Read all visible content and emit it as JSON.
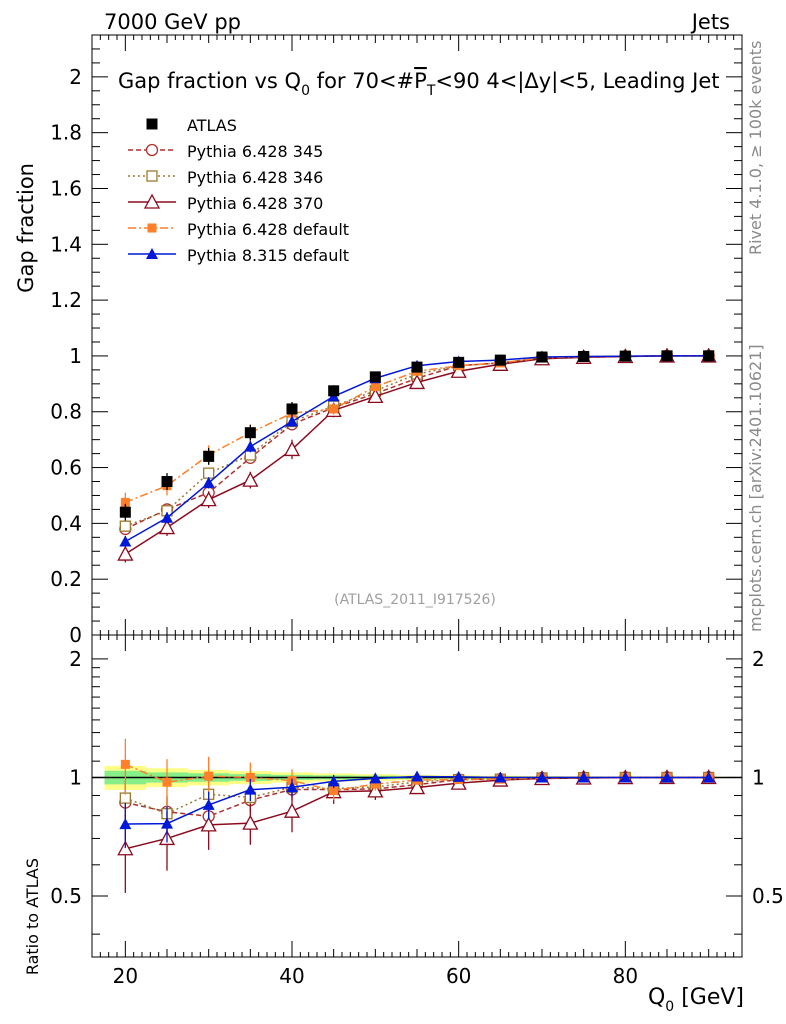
{
  "header": {
    "left": "7000 GeV pp",
    "right": "Jets"
  },
  "side_labels": {
    "rivet": "Rivet 4.1.0, ≥ 100k events",
    "mcplots": "mcplots.cern.ch [arXiv:2401.10621]"
  },
  "chart_data": {
    "type": "scatter",
    "title_parts": {
      "a": "Gap fraction vs Q",
      "a_sub": "0",
      "b": " for 70<#",
      "c": "P",
      "c_sub": "T",
      "d": "<90  4<|Δy|<5, Leading Jet"
    },
    "analysis_tag": "(ATLAS_2011_I917526)",
    "xlabel": "Q",
    "xlabel_sub": "0",
    "xlabel_unit": " [GeV]",
    "xlim": [
      16,
      94
    ],
    "x_ticks": [
      20,
      40,
      60,
      80
    ],
    "x_tick_labels": [
      "20",
      "40",
      "60",
      "80"
    ],
    "top": {
      "ylabel": "Gap fraction",
      "ylim": [
        0,
        2.15
      ],
      "y_ticks": [
        0,
        0.2,
        0.4,
        0.6,
        0.8,
        1.0,
        1.2,
        1.4,
        1.6,
        1.8,
        2.0
      ],
      "y_tick_labels": [
        "0",
        "0.2",
        "0.4",
        "0.6",
        "0.8",
        "1",
        "1.2",
        "1.4",
        "1.6",
        "1.8",
        "2"
      ]
    },
    "ratio": {
      "ylabel": "Ratio to ATLAS",
      "ylim": [
        0.35,
        2.3
      ],
      "log": true,
      "y_ticks": [
        0.5,
        1,
        2
      ],
      "y_tick_labels": [
        "0.5",
        "1",
        "2"
      ],
      "band_inner": {
        "color": "#88ee88",
        "halfwidths": [
          0.04,
          0.03,
          0.025,
          0.02,
          0.015,
          0.012,
          0.01,
          0.008,
          0.006,
          0.005,
          0.004,
          0.003,
          0.003,
          0.003,
          0.003
        ]
      },
      "band_outer": {
        "color": "#ffff88",
        "halfwidths": [
          0.07,
          0.055,
          0.045,
          0.038,
          0.03,
          0.024,
          0.02,
          0.015,
          0.012,
          0.01,
          0.008,
          0.006,
          0.005,
          0.005,
          0.005
        ]
      }
    },
    "x": [
      20,
      25,
      30,
      35,
      40,
      45,
      50,
      55,
      60,
      65,
      70,
      75,
      80,
      85,
      90
    ],
    "data": {
      "name": "ATLAS",
      "color": "#000000",
      "values": [
        0.44,
        0.55,
        0.64,
        0.725,
        0.81,
        0.875,
        0.925,
        0.96,
        0.977,
        0.985,
        0.996,
        0.998,
        0.999,
        1.0,
        1.0
      ],
      "errors": [
        0.03,
        0.03,
        0.03,
        0.028,
        0.025,
        0.02,
        0.015,
        0.01,
        0.008,
        0.006,
        0.004,
        0.003,
        0.002,
        0.002,
        0.002
      ]
    },
    "series": [
      {
        "name": "Pythia 6.428 345",
        "color": "#b03030",
        "dash": "5,3",
        "marker": "circle-open",
        "values": [
          0.38,
          0.45,
          0.51,
          0.635,
          0.755,
          0.815,
          0.865,
          0.92,
          0.965,
          0.975,
          0.993,
          0.997,
          0.999,
          1.0,
          1.0
        ],
        "errors": [
          0.02,
          0.02,
          0.02,
          0.02,
          0.02,
          0.018,
          0.015,
          0.01,
          0.008,
          0.005,
          0.003,
          0.002,
          0.001,
          0.001,
          0.001
        ]
      },
      {
        "name": "Pythia 6.428 346",
        "color": "#9a7a30",
        "dash": "2,3",
        "marker": "square-open",
        "values": [
          0.39,
          0.445,
          0.58,
          0.645,
          0.765,
          0.82,
          0.875,
          0.935,
          0.965,
          0.975,
          0.993,
          0.997,
          0.999,
          1.0,
          1.0
        ],
        "errors": [
          0.02,
          0.02,
          0.02,
          0.02,
          0.02,
          0.018,
          0.015,
          0.01,
          0.008,
          0.005,
          0.003,
          0.002,
          0.001,
          0.001,
          0.001
        ]
      },
      {
        "name": "Pythia 6.428 370",
        "color": "#8b0a1e",
        "dash": "",
        "marker": "triangle-open",
        "values": [
          0.29,
          0.385,
          0.485,
          0.555,
          0.665,
          0.805,
          0.855,
          0.905,
          0.945,
          0.97,
          0.99,
          0.995,
          0.998,
          1.0,
          1.0
        ],
        "errors": [
          0.03,
          0.03,
          0.03,
          0.03,
          0.035,
          0.025,
          0.02,
          0.015,
          0.01,
          0.006,
          0.004,
          0.002,
          0.001,
          0.001,
          0.001
        ]
      },
      {
        "name": "Pythia 6.428 default",
        "color": "#ff7f2a",
        "dash": "8,3,2,3",
        "marker": "square-filled",
        "values": [
          0.475,
          0.535,
          0.645,
          0.725,
          0.795,
          0.81,
          0.89,
          0.945,
          0.965,
          0.975,
          0.993,
          0.997,
          0.999,
          1.0,
          1.0
        ],
        "errors": [
          0.035,
          0.035,
          0.035,
          0.03,
          0.025,
          0.02,
          0.015,
          0.01,
          0.008,
          0.005,
          0.003,
          0.002,
          0.001,
          0.001,
          0.001
        ]
      },
      {
        "name": "Pythia 8.315 default",
        "color": "#0018d8",
        "dash": "",
        "marker": "triangle-filled",
        "values": [
          0.335,
          0.42,
          0.545,
          0.675,
          0.765,
          0.855,
          0.92,
          0.965,
          0.98,
          0.985,
          0.996,
          0.998,
          0.999,
          1.0,
          1.0
        ],
        "errors": [
          0.02,
          0.02,
          0.02,
          0.02,
          0.018,
          0.015,
          0.012,
          0.008,
          0.006,
          0.004,
          0.003,
          0.002,
          0.001,
          0.001,
          0.001
        ]
      }
    ]
  }
}
